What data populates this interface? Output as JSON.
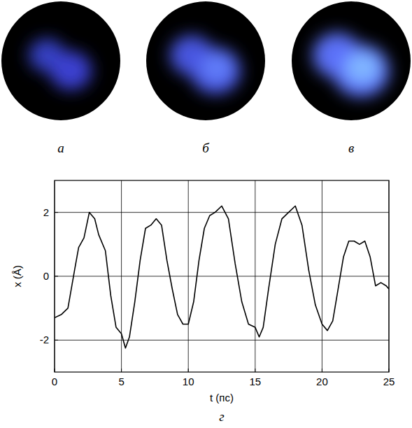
{
  "panels": [
    {
      "label": "а"
    },
    {
      "label": "б"
    },
    {
      "label": "в"
    }
  ],
  "chart_data": {
    "type": "line",
    "label": "г",
    "x_label": "t (пс)",
    "y_label": "x (Å)",
    "x": [
      0,
      0.5,
      1,
      1.5,
      1.8,
      2.2,
      2.6,
      3.0,
      3.3,
      3.8,
      4.2,
      4.6,
      5.0,
      5.3,
      5.6,
      6.0,
      6.4,
      6.8,
      7.2,
      7.6,
      8.0,
      8.4,
      8.8,
      9.2,
      9.6,
      10.0,
      10.4,
      10.8,
      11.2,
      11.6,
      12.0,
      12.5,
      13.0,
      13.5,
      14.0,
      14.5,
      15.0,
      15.3,
      15.6,
      16.0,
      16.5,
      17.0,
      17.5,
      18.0,
      18.5,
      19.0,
      19.5,
      20.0,
      20.4,
      20.8,
      21.2,
      21.6,
      22.0,
      22.4,
      22.8,
      23.2,
      23.6,
      24.0,
      24.4,
      24.8,
      25
    ],
    "values": [
      -1.3,
      -1.2,
      -1.0,
      0.2,
      0.9,
      1.2,
      2.0,
      1.8,
      1.3,
      0.8,
      -0.6,
      -1.6,
      -1.8,
      -2.25,
      -1.9,
      -0.8,
      0.5,
      1.5,
      1.6,
      1.8,
      1.6,
      0.5,
      -0.4,
      -1.2,
      -1.5,
      -1.5,
      -0.8,
      0.5,
      1.5,
      1.9,
      2.0,
      2.2,
      1.8,
      0.4,
      -0.8,
      -1.5,
      -1.6,
      -1.9,
      -1.6,
      -0.4,
      1.0,
      1.8,
      2.0,
      2.2,
      1.6,
      0.2,
      -0.9,
      -1.5,
      -1.7,
      -1.4,
      -0.4,
      0.6,
      1.1,
      1.1,
      1.0,
      1.1,
      0.6,
      -0.3,
      -0.2,
      -0.3,
      -0.4
    ],
    "color": "#000000",
    "xlim": [
      0,
      25
    ],
    "ylim": [
      -3,
      3
    ],
    "xticks": [
      0,
      5,
      10,
      15,
      20,
      25
    ],
    "yticks": [
      -2,
      0,
      2
    ],
    "grid": true
  }
}
